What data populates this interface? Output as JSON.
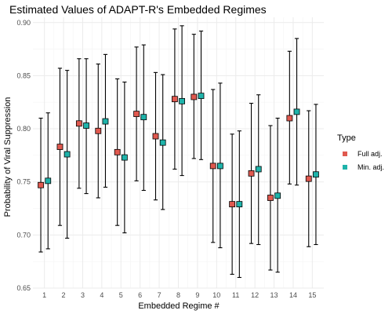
{
  "chart_data": {
    "type": "scatter",
    "title": "Estimated Values of ADAPT-R's Embedded Regimes",
    "xlabel": "Embedded Regime #",
    "ylabel": "Probability of Viral Suppression",
    "categories": [
      "1",
      "2",
      "3",
      "4",
      "5",
      "6",
      "7",
      "8",
      "9",
      "10",
      "11",
      "12",
      "13",
      "14",
      "15"
    ],
    "ylim": [
      0.65,
      0.905
    ],
    "yticks": [
      0.65,
      0.7,
      0.75,
      0.8,
      0.85,
      0.9
    ],
    "ytick_labels": [
      "0.65",
      "0.70",
      "0.75",
      "0.80",
      "0.85",
      "0.90"
    ],
    "grid": true,
    "legend": {
      "title": "Type",
      "position": "right"
    },
    "series": [
      {
        "name": "Full adj.",
        "color": "#e0594f",
        "values": [
          0.747,
          0.783,
          0.805,
          0.798,
          0.778,
          0.814,
          0.793,
          0.828,
          0.83,
          0.765,
          0.729,
          0.758,
          0.735,
          0.81,
          0.753
        ],
        "lower": [
          0.684,
          0.709,
          0.744,
          0.735,
          0.709,
          0.751,
          0.733,
          0.762,
          0.772,
          0.693,
          0.663,
          0.692,
          0.667,
          0.748,
          0.689
        ],
        "upper": [
          0.81,
          0.857,
          0.866,
          0.861,
          0.847,
          0.877,
          0.853,
          0.894,
          0.889,
          0.837,
          0.795,
          0.824,
          0.803,
          0.873,
          0.817
        ]
      },
      {
        "name": "Min. adj.",
        "color": "#1fb3aa",
        "values": [
          0.751,
          0.776,
          0.803,
          0.807,
          0.773,
          0.811,
          0.787,
          0.826,
          0.831,
          0.765,
          0.729,
          0.762,
          0.737,
          0.816,
          0.757
        ],
        "lower": [
          0.687,
          0.697,
          0.739,
          0.745,
          0.702,
          0.742,
          0.724,
          0.756,
          0.771,
          0.688,
          0.66,
          0.691,
          0.665,
          0.747,
          0.691
        ],
        "upper": [
          0.815,
          0.855,
          0.866,
          0.87,
          0.844,
          0.879,
          0.851,
          0.897,
          0.892,
          0.843,
          0.798,
          0.832,
          0.81,
          0.885,
          0.823
        ]
      }
    ]
  }
}
